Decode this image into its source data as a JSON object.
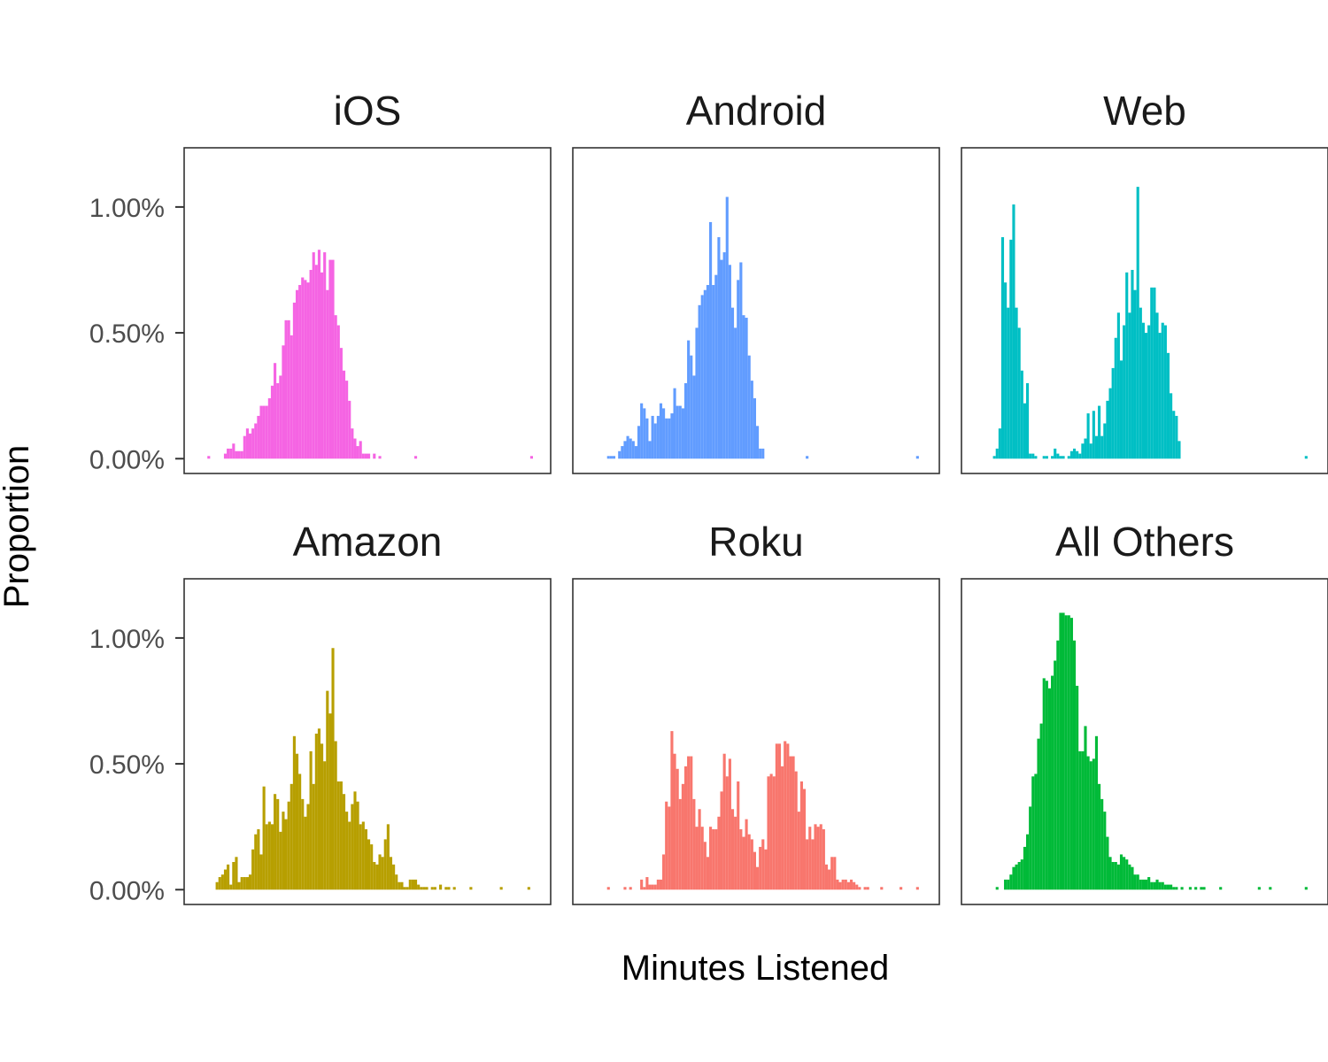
{
  "chart_data": {
    "type": "bar",
    "xlabel": "Minutes Listened",
    "ylabel": "Proportion",
    "ylim": [
      0,
      1.2
    ],
    "y_ticks": [
      0,
      0.5,
      1.0
    ],
    "y_tick_labels": [
      "0.00%",
      "0.50%",
      "1.00%"
    ],
    "x_ticks_shown": false,
    "grid": false,
    "layout": "facets 2 rows x 3 columns, shared y axis",
    "bins_per_panel": 120,
    "facets": [
      {
        "name": "iOS",
        "color": "#F564E3",
        "values": [
          0,
          0,
          0.01,
          0,
          0,
          0,
          0,
          0,
          0.02,
          0.04,
          0.04,
          0.06,
          0.03,
          0.03,
          0.03,
          0.09,
          0.12,
          0.1,
          0.12,
          0.14,
          0.17,
          0.21,
          0.21,
          0.21,
          0.24,
          0.29,
          0.38,
          0.3,
          0.33,
          0.45,
          0.55,
          0.55,
          0.49,
          0.62,
          0.67,
          0.69,
          0.72,
          0.71,
          0.7,
          0.75,
          0.82,
          0.77,
          0.83,
          0.74,
          0.82,
          0.67,
          0.79,
          0.79,
          0.57,
          0.53,
          0.44,
          0.35,
          0.31,
          0.23,
          0.12,
          0.08,
          0.05,
          0.07,
          0.02,
          0.02,
          0.02,
          0,
          0.02,
          0,
          0.01,
          0,
          0,
          0,
          0,
          0,
          0,
          0,
          0,
          0,
          0,
          0,
          0,
          0.01,
          0,
          0,
          0,
          0,
          0,
          0,
          0,
          0,
          0,
          0,
          0,
          0,
          0,
          0,
          0,
          0,
          0,
          0,
          0,
          0,
          0,
          0,
          0,
          0,
          0,
          0,
          0,
          0,
          0,
          0,
          0,
          0,
          0,
          0,
          0,
          0,
          0,
          0,
          0,
          0,
          0,
          0.01
        ]
      },
      {
        "name": "Android",
        "color": "#619CFF",
        "values": [
          0,
          0,
          0,
          0,
          0,
          0,
          0.01,
          0.01,
          0.01,
          0,
          0.03,
          0.05,
          0.07,
          0.09,
          0.08,
          0.07,
          0.05,
          0.13,
          0.22,
          0.2,
          0.16,
          0.07,
          0.17,
          0.14,
          0.17,
          0.22,
          0.2,
          0.16,
          0.16,
          0.18,
          0.28,
          0.21,
          0.21,
          0.2,
          0.3,
          0.47,
          0.41,
          0.33,
          0.52,
          0.61,
          0.65,
          0.67,
          0.69,
          0.94,
          0.69,
          0.73,
          0.88,
          0.79,
          0.82,
          1.04,
          0.77,
          0.6,
          0.52,
          0.71,
          0.78,
          0.57,
          0.56,
          0.41,
          0.31,
          0.24,
          0.13,
          0.04,
          0.04,
          0,
          0,
          0,
          0,
          0,
          0,
          0,
          0,
          0,
          0,
          0,
          0,
          0,
          0,
          0,
          0.01,
          0,
          0,
          0,
          0,
          0,
          0,
          0,
          0,
          0,
          0,
          0,
          0,
          0,
          0,
          0,
          0,
          0,
          0,
          0,
          0,
          0,
          0,
          0,
          0,
          0,
          0,
          0,
          0,
          0,
          0,
          0,
          0,
          0,
          0,
          0,
          0,
          0,
          0,
          0,
          0.01,
          0
        ]
      },
      {
        "name": "Web",
        "color": "#00BFC4",
        "values": [
          0,
          0,
          0,
          0,
          0,
          0.01,
          0.04,
          0.12,
          0.88,
          0.7,
          0.6,
          0.87,
          1.01,
          0.6,
          0.52,
          0.35,
          0.22,
          0.3,
          0.02,
          0.02,
          0.01,
          0,
          0,
          0.01,
          0.01,
          0,
          0.01,
          0.04,
          0.02,
          0.01,
          0.01,
          0,
          0.01,
          0.03,
          0.04,
          0.03,
          0.02,
          0.06,
          0.08,
          0.18,
          0.06,
          0.19,
          0.09,
          0.21,
          0.09,
          0.14,
          0.23,
          0.28,
          0.36,
          0.48,
          0.58,
          0.39,
          0.53,
          0.74,
          0.58,
          0.75,
          0.67,
          1.08,
          0.6,
          0.54,
          0.5,
          0.53,
          0.68,
          0.68,
          0.58,
          0.5,
          0.54,
          0.53,
          0.42,
          0.26,
          0.19,
          0.17,
          0.07,
          0,
          0,
          0,
          0,
          0,
          0,
          0,
          0,
          0,
          0,
          0,
          0,
          0,
          0,
          0,
          0,
          0,
          0,
          0,
          0,
          0,
          0,
          0,
          0,
          0,
          0,
          0,
          0,
          0,
          0,
          0,
          0,
          0,
          0,
          0,
          0,
          0,
          0,
          0,
          0,
          0,
          0,
          0,
          0,
          0,
          0.01,
          0
        ]
      },
      {
        "name": "Amazon",
        "color": "#B79F00",
        "values": [
          0,
          0,
          0,
          0,
          0,
          0.03,
          0.05,
          0.06,
          0.08,
          0.1,
          0.02,
          0.11,
          0.13,
          0.03,
          0.05,
          0.05,
          0.05,
          0.06,
          0.16,
          0.22,
          0.24,
          0.14,
          0.41,
          0.26,
          0.27,
          0.26,
          0.38,
          0.36,
          0.23,
          0.31,
          0.28,
          0.35,
          0.42,
          0.61,
          0.54,
          0.46,
          0.36,
          0.29,
          0.34,
          0.55,
          0.42,
          0.62,
          0.64,
          0.58,
          0.51,
          0.79,
          0.7,
          0.96,
          0.59,
          0.43,
          0.43,
          0.38,
          0.31,
          0.27,
          0.34,
          0.39,
          0.35,
          0.26,
          0.27,
          0.24,
          0.2,
          0.18,
          0.11,
          0.1,
          0.14,
          0.13,
          0.2,
          0.26,
          0.13,
          0.1,
          0.06,
          0.03,
          0.03,
          0.01,
          0.01,
          0.04,
          0.04,
          0.04,
          0.02,
          0.01,
          0.01,
          0.01,
          0,
          0.01,
          0.01,
          0,
          0.02,
          0,
          0.01,
          0.01,
          0,
          0.01,
          0,
          0,
          0,
          0,
          0,
          0.01,
          0,
          0,
          0,
          0,
          0,
          0,
          0,
          0,
          0,
          0,
          0.01,
          0,
          0,
          0,
          0,
          0,
          0,
          0,
          0,
          0,
          0.01,
          0
        ]
      },
      {
        "name": "Roku",
        "color": "#F8766D",
        "values": [
          0,
          0,
          0,
          0,
          0,
          0,
          0.01,
          0,
          0,
          0,
          0,
          0,
          0.01,
          0,
          0.01,
          0,
          0,
          0,
          0.04,
          0.01,
          0.05,
          0.02,
          0.02,
          0.02,
          0.04,
          0.04,
          0.14,
          0.35,
          0.33,
          0.63,
          0.54,
          0.48,
          0.36,
          0.42,
          0.49,
          0.53,
          0.53,
          0.36,
          0.25,
          0.32,
          0.25,
          0.19,
          0.13,
          0.25,
          0.24,
          0.24,
          0.29,
          0.39,
          0.54,
          0.45,
          0.52,
          0.32,
          0.29,
          0.43,
          0.24,
          0.21,
          0.28,
          0.22,
          0.2,
          0.15,
          0.09,
          0.17,
          0.2,
          0.16,
          0.45,
          0.46,
          0.45,
          0.58,
          0.58,
          0.49,
          0.59,
          0.58,
          0.53,
          0.53,
          0.47,
          0.31,
          0.43,
          0.4,
          0.2,
          0.25,
          0.2,
          0.26,
          0.25,
          0.26,
          0.24,
          0.1,
          0.08,
          0.13,
          0.13,
          0.04,
          0.03,
          0.04,
          0.04,
          0.03,
          0.04,
          0.03,
          0.02,
          0.01,
          0,
          0.01,
          0.01,
          0,
          0,
          0,
          0,
          0.01,
          0,
          0,
          0,
          0,
          0,
          0,
          0.01,
          0,
          0,
          0,
          0,
          0,
          0.01,
          0
        ]
      },
      {
        "name": "All Others",
        "color": "#00BA38",
        "values": [
          0,
          0,
          0,
          0,
          0,
          0,
          0.01,
          0,
          0,
          0.04,
          0.04,
          0.06,
          0.09,
          0.1,
          0.11,
          0.12,
          0.17,
          0.22,
          0.33,
          0.45,
          0.46,
          0.6,
          0.66,
          0.84,
          0.83,
          0.8,
          0.85,
          0.91,
          0.99,
          1.1,
          1.1,
          1.09,
          1.09,
          1.08,
          0.99,
          0.81,
          0.55,
          0.55,
          0.65,
          0.53,
          0.51,
          0.52,
          0.61,
          0.42,
          0.36,
          0.31,
          0.21,
          0.13,
          0.11,
          0.11,
          0.1,
          0.14,
          0.13,
          0.12,
          0.1,
          0.09,
          0.06,
          0.06,
          0.04,
          0.04,
          0.04,
          0.05,
          0.03,
          0.03,
          0.04,
          0.03,
          0.03,
          0.02,
          0.02,
          0.02,
          0.01,
          0.01,
          0,
          0.01,
          0,
          0,
          0.01,
          0,
          0.01,
          0,
          0.01,
          0.01,
          0,
          0,
          0,
          0,
          0,
          0.01,
          0,
          0,
          0,
          0,
          0,
          0,
          0,
          0,
          0,
          0,
          0,
          0,
          0,
          0.01,
          0,
          0,
          0,
          0.01,
          0,
          0,
          0,
          0,
          0,
          0,
          0,
          0,
          0,
          0,
          0,
          0,
          0.01,
          0
        ]
      }
    ]
  }
}
